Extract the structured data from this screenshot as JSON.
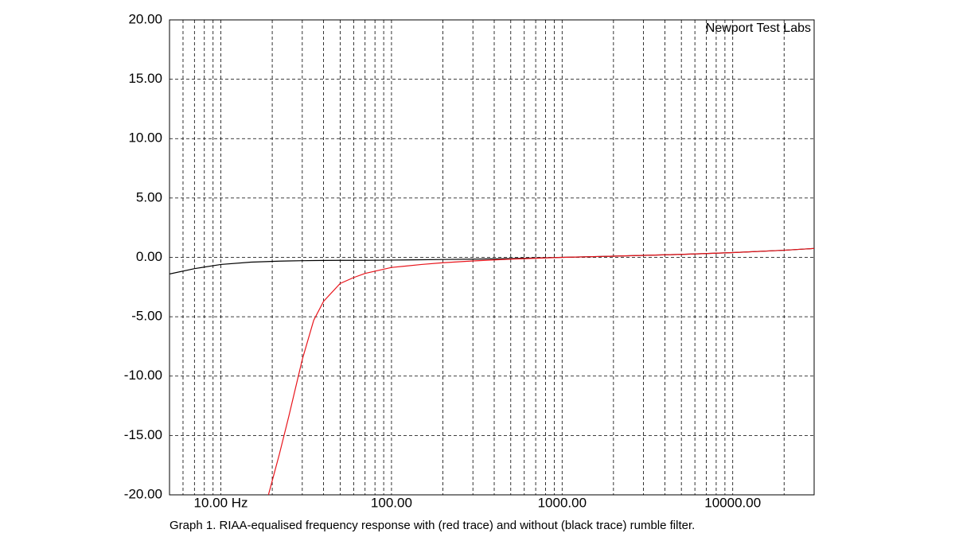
{
  "chart_data": {
    "type": "line",
    "annotation": "Newport Test Labs",
    "caption": "Graph 1. RIAA-equalised frequency response with (red trace) and without (black trace) rumble filter.",
    "log_x": true,
    "grid": true,
    "xlim": [
      5,
      30000
    ],
    "xticks": [
      {
        "value": 10,
        "label": "10.00 Hz"
      },
      {
        "value": 100,
        "label": "100.00"
      },
      {
        "value": 1000,
        "label": "1000.00"
      },
      {
        "value": 10000,
        "label": "10000.00"
      }
    ],
    "xminorticks": [
      5,
      6,
      7,
      8,
      9,
      20,
      30,
      40,
      50,
      60,
      70,
      80,
      90,
      200,
      300,
      400,
      500,
      600,
      700,
      800,
      900,
      2000,
      3000,
      4000,
      5000,
      6000,
      7000,
      8000,
      9000,
      20000,
      30000
    ],
    "ylim": [
      -20,
      20
    ],
    "yticks": [
      {
        "value": 20,
        "label": "20.00"
      },
      {
        "value": 15,
        "label": "15.00"
      },
      {
        "value": 10,
        "label": "10.00"
      },
      {
        "value": 5,
        "label": "5.00"
      },
      {
        "value": 0,
        "label": "0.00"
      },
      {
        "value": -5,
        "label": "-5.00"
      },
      {
        "value": -10,
        "label": "-10.00"
      },
      {
        "value": -15,
        "label": "-15.00"
      },
      {
        "value": -20,
        "label": "-20.00"
      }
    ],
    "x": [
      5,
      7,
      10,
      15,
      19,
      22,
      25,
      30,
      35,
      40,
      50,
      60,
      70,
      100,
      150,
      200,
      300,
      500,
      1000,
      2000,
      5000,
      10000,
      20000,
      30000
    ],
    "series": [
      {
        "color": "#000000",
        "values": [
          -1.4,
          -0.95,
          -0.6,
          -0.4,
          -0.35,
          -0.32,
          -0.3,
          -0.28,
          -0.27,
          -0.26,
          -0.25,
          -0.25,
          -0.25,
          -0.23,
          -0.2,
          -0.18,
          -0.15,
          -0.1,
          0,
          0.1,
          0.25,
          0.4,
          0.6,
          0.75
        ]
      },
      {
        "color": "#e8141b",
        "values": [
          null,
          null,
          null,
          null,
          -20,
          -16.6,
          -13.4,
          -8.6,
          -5.3,
          -3.7,
          -2.2,
          -1.7,
          -1.35,
          -0.85,
          -0.6,
          -0.45,
          -0.3,
          -0.15,
          0,
          0.1,
          0.25,
          0.4,
          0.6,
          0.75
        ]
      }
    ]
  }
}
